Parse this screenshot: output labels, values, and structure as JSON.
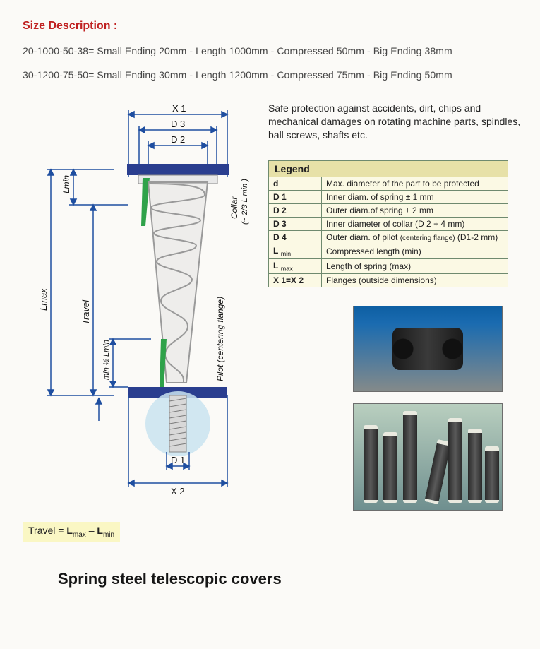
{
  "heading": "Size Description :",
  "size_lines": [
    "20-1000-50-38= Small Ending 20mm - Length 1000mm - Compressed 50mm - Big Ending 38mm",
    "30-1200-75-50= Small Ending 30mm - Length 1200mm - Compressed 75mm - Big Ending 50mm"
  ],
  "safe_text": "Safe protection against accidents, dirt, chips and mechanical damages on rotating machine parts, spindles, ball screws, shafts etc.",
  "legend": {
    "title": "Legend",
    "rows": [
      {
        "sym_html": "<b>d</b>",
        "desc": "Max. diameter of the part to be protected"
      },
      {
        "sym_html": "<b>D 1</b>",
        "desc": "Inner diam. of spring ± 1 mm"
      },
      {
        "sym_html": "<b>D 2</b>",
        "desc": "Outer diam.of spring ± 2 mm"
      },
      {
        "sym_html": "<b>D 3</b>",
        "desc": "Inner diameter of collar (D 2  + 4 mm)"
      },
      {
        "sym_html": "<b>D 4</b>",
        "desc_html": "Outer diam. of pilot <span style='font-size:10px'>(centering flange)</span> (D1-2 mm)"
      },
      {
        "sym_html": "<b>L</b> <span class='sub'>min</span>",
        "desc": "Compressed length (min)"
      },
      {
        "sym_html": "<b>L</b> <span class='sub'>max</span>",
        "desc": "Length of spring (max)"
      },
      {
        "sym_html": "<b>X 1=X 2</b>",
        "desc": "Flanges (outside dimensions)"
      }
    ]
  },
  "diagram": {
    "top_labels": [
      "X 1",
      "D 3",
      "D 2"
    ],
    "bottom_labels": [
      "D 1",
      "X 2"
    ],
    "left_labels": {
      "lmax": "Lmax",
      "travel": "Travel",
      "lmin": "Lmin",
      "half_lmin": "min ½ Lmin"
    },
    "right_labels": {
      "collar": "Collar",
      "collar_sub": "(~ 2/3 L min )",
      "pilot": "Pilot (centering flange)"
    },
    "colors": {
      "dim_line": "#1e4ea0",
      "flange": "#2a3e8f",
      "accent_green": "#2fa24a",
      "spring": "#9b9b9b",
      "spring_light": "#d0d0d0",
      "bg_circle": "#c9e3f0"
    }
  },
  "travel_formula": {
    "lhs": "Travel =",
    "term1": "L",
    "sub1": "max",
    "minus": "–",
    "term2": "L",
    "sub2": "min"
  },
  "bottom_title": "Spring steel telescopic covers"
}
